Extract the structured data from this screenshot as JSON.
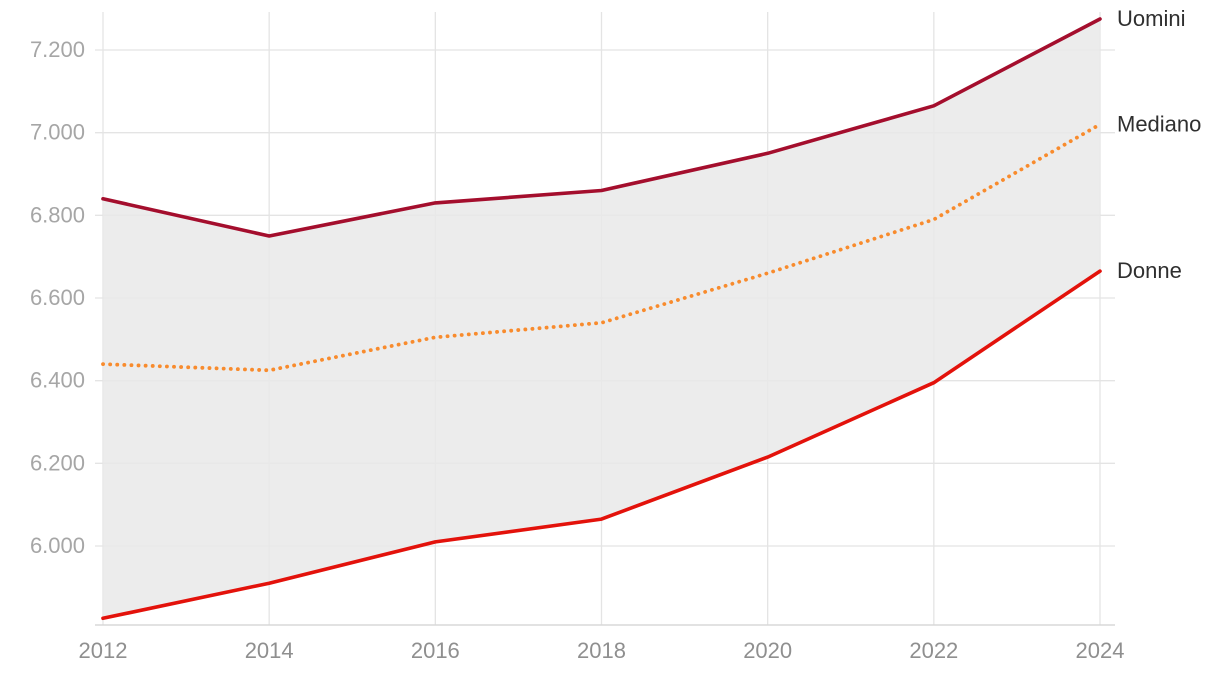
{
  "chart_data": {
    "type": "line",
    "title": "",
    "xlabel": "",
    "ylabel": "",
    "x": [
      2012,
      2014,
      2016,
      2018,
      2020,
      2022,
      2024
    ],
    "x_tick_labels": [
      "2012",
      "2014",
      "2016",
      "2018",
      "2020",
      "2022",
      "2024"
    ],
    "series": [
      {
        "name": "Uomini",
        "values": [
          6840,
          6750,
          6830,
          6860,
          6950,
          7065,
          7275
        ],
        "color": "#a40e2d",
        "line_style": "solid"
      },
      {
        "name": "Mediano",
        "values": [
          6440,
          6425,
          6505,
          6540,
          6660,
          6790,
          7020
        ],
        "color": "#f88b2d",
        "line_style": "dotted"
      },
      {
        "name": "Donne",
        "values": [
          5825,
          5910,
          6010,
          6065,
          6215,
          6395,
          6665
        ],
        "color": "#e3120b",
        "line_style": "solid"
      }
    ],
    "band": {
      "upper_series": "Uomini",
      "lower_series": "Donne",
      "fill": "#e9e9e9"
    },
    "yticks": [
      6000,
      6200,
      6400,
      6600,
      6800,
      7000,
      7200
    ],
    "ytick_labels": [
      "6.000",
      "6.200",
      "6.400",
      "6.600",
      "6.800",
      "7.000",
      "7.200"
    ],
    "ylim": [
      5809,
      7292
    ],
    "grid": true,
    "legend_position": "right-end-of-lines",
    "colors": {
      "grid": "#e4e4e4",
      "axis_line": "#d8d8d8",
      "y_tick_text": "#a6a6a6",
      "x_tick_text": "#8f8f8f",
      "label_text": "#2f2f2f",
      "background": "#ffffff"
    }
  }
}
